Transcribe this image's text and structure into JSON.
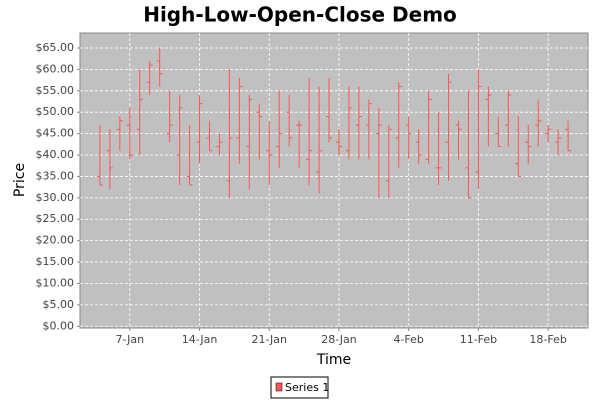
{
  "chart_data": {
    "type": "hloc",
    "title": "High-Low-Open-Close Demo",
    "x_label": "Time",
    "y_label": "Price",
    "x": [
      "4-Jan",
      "5-Jan",
      "6-Jan",
      "7-Jan",
      "8-Jan",
      "9-Jan",
      "10-Jan",
      "11-Jan",
      "12-Jan",
      "13-Jan",
      "14-Jan",
      "15-Jan",
      "16-Jan",
      "17-Jan",
      "18-Jan",
      "19-Jan",
      "20-Jan",
      "21-Jan",
      "22-Jan",
      "23-Jan",
      "24-Jan",
      "25-Jan",
      "26-Jan",
      "27-Jan",
      "28-Jan",
      "29-Jan",
      "30-Jan",
      "31-Jan",
      "1-Feb",
      "2-Feb",
      "3-Feb",
      "4-Feb",
      "5-Feb",
      "6-Feb",
      "7-Feb",
      "8-Feb",
      "9-Feb",
      "10-Feb",
      "11-Feb",
      "12-Feb",
      "13-Feb",
      "14-Feb",
      "15-Feb",
      "16-Feb",
      "17-Feb",
      "18-Feb",
      "19-Feb",
      "20-Feb"
    ],
    "series": [
      {
        "name": "Series 1",
        "color": "#ff5555",
        "high": [
          47,
          46,
          49,
          51,
          60,
          62,
          65,
          55,
          54,
          47,
          54,
          48,
          45,
          60,
          58,
          54,
          52,
          48,
          55,
          54,
          48,
          58,
          56,
          58,
          46,
          56,
          56,
          53,
          51,
          47,
          57,
          49,
          46,
          55,
          50,
          59,
          48,
          55,
          60,
          56,
          49,
          55,
          49,
          47,
          53,
          47,
          46,
          48
        ],
        "low": [
          33,
          32,
          41,
          39,
          40,
          54,
          56,
          43,
          33,
          33,
          38,
          41,
          40,
          30,
          38,
          32,
          39,
          33,
          37,
          42,
          37,
          33,
          31,
          43,
          40,
          39,
          39,
          39,
          30,
          30,
          37,
          39,
          38,
          38,
          33,
          34,
          39,
          30,
          32,
          42,
          42,
          42,
          35,
          38,
          42,
          43,
          40,
          41
        ],
        "open": [
          35,
          41,
          46,
          47,
          46,
          57,
          62,
          45,
          40,
          35,
          43,
          44,
          42,
          34,
          44,
          42,
          50,
          41,
          42,
          50,
          47,
          39,
          36,
          49,
          43,
          41,
          47,
          47,
          45,
          34,
          44,
          47,
          43,
          39,
          37,
          43,
          47,
          37,
          36,
          53,
          45,
          47,
          38,
          43,
          47,
          45,
          43,
          46
        ],
        "close": [
          33,
          37,
          48,
          40,
          53,
          61,
          59,
          47,
          51,
          33,
          52,
          41,
          43,
          44,
          56,
          53,
          49,
          40,
          45,
          44,
          47,
          41,
          41,
          44,
          42,
          51,
          49,
          52,
          47,
          46,
          56,
          45,
          40,
          53,
          37,
          57,
          46,
          30,
          56,
          54,
          42,
          54,
          35,
          42,
          48,
          46,
          44,
          41
        ]
      }
    ],
    "xlim": [
      "2-Jan",
      "22-Feb"
    ],
    "xticks": [
      "7-Jan",
      "14-Jan",
      "21-Jan",
      "28-Jan",
      "4-Feb",
      "11-Feb",
      "18-Feb"
    ],
    "ylim": [
      -0.4,
      68.5
    ],
    "yticks": [
      {
        "value": 0,
        "label": "$0.00"
      },
      {
        "value": 5,
        "label": "$5.00"
      },
      {
        "value": 10,
        "label": "$10.00"
      },
      {
        "value": 15,
        "label": "$15.00"
      },
      {
        "value": 20,
        "label": "$20.00"
      },
      {
        "value": 25,
        "label": "$25.00"
      },
      {
        "value": 30,
        "label": "$30.00"
      },
      {
        "value": 35,
        "label": "$35.00"
      },
      {
        "value": 40,
        "label": "$40.00"
      },
      {
        "value": 45,
        "label": "$45.00"
      },
      {
        "value": 50,
        "label": "$50.00"
      },
      {
        "value": 55,
        "label": "$55.00"
      },
      {
        "value": 60,
        "label": "$60.00"
      },
      {
        "value": 65,
        "label": "$65.00"
      }
    ],
    "grid": true
  }
}
